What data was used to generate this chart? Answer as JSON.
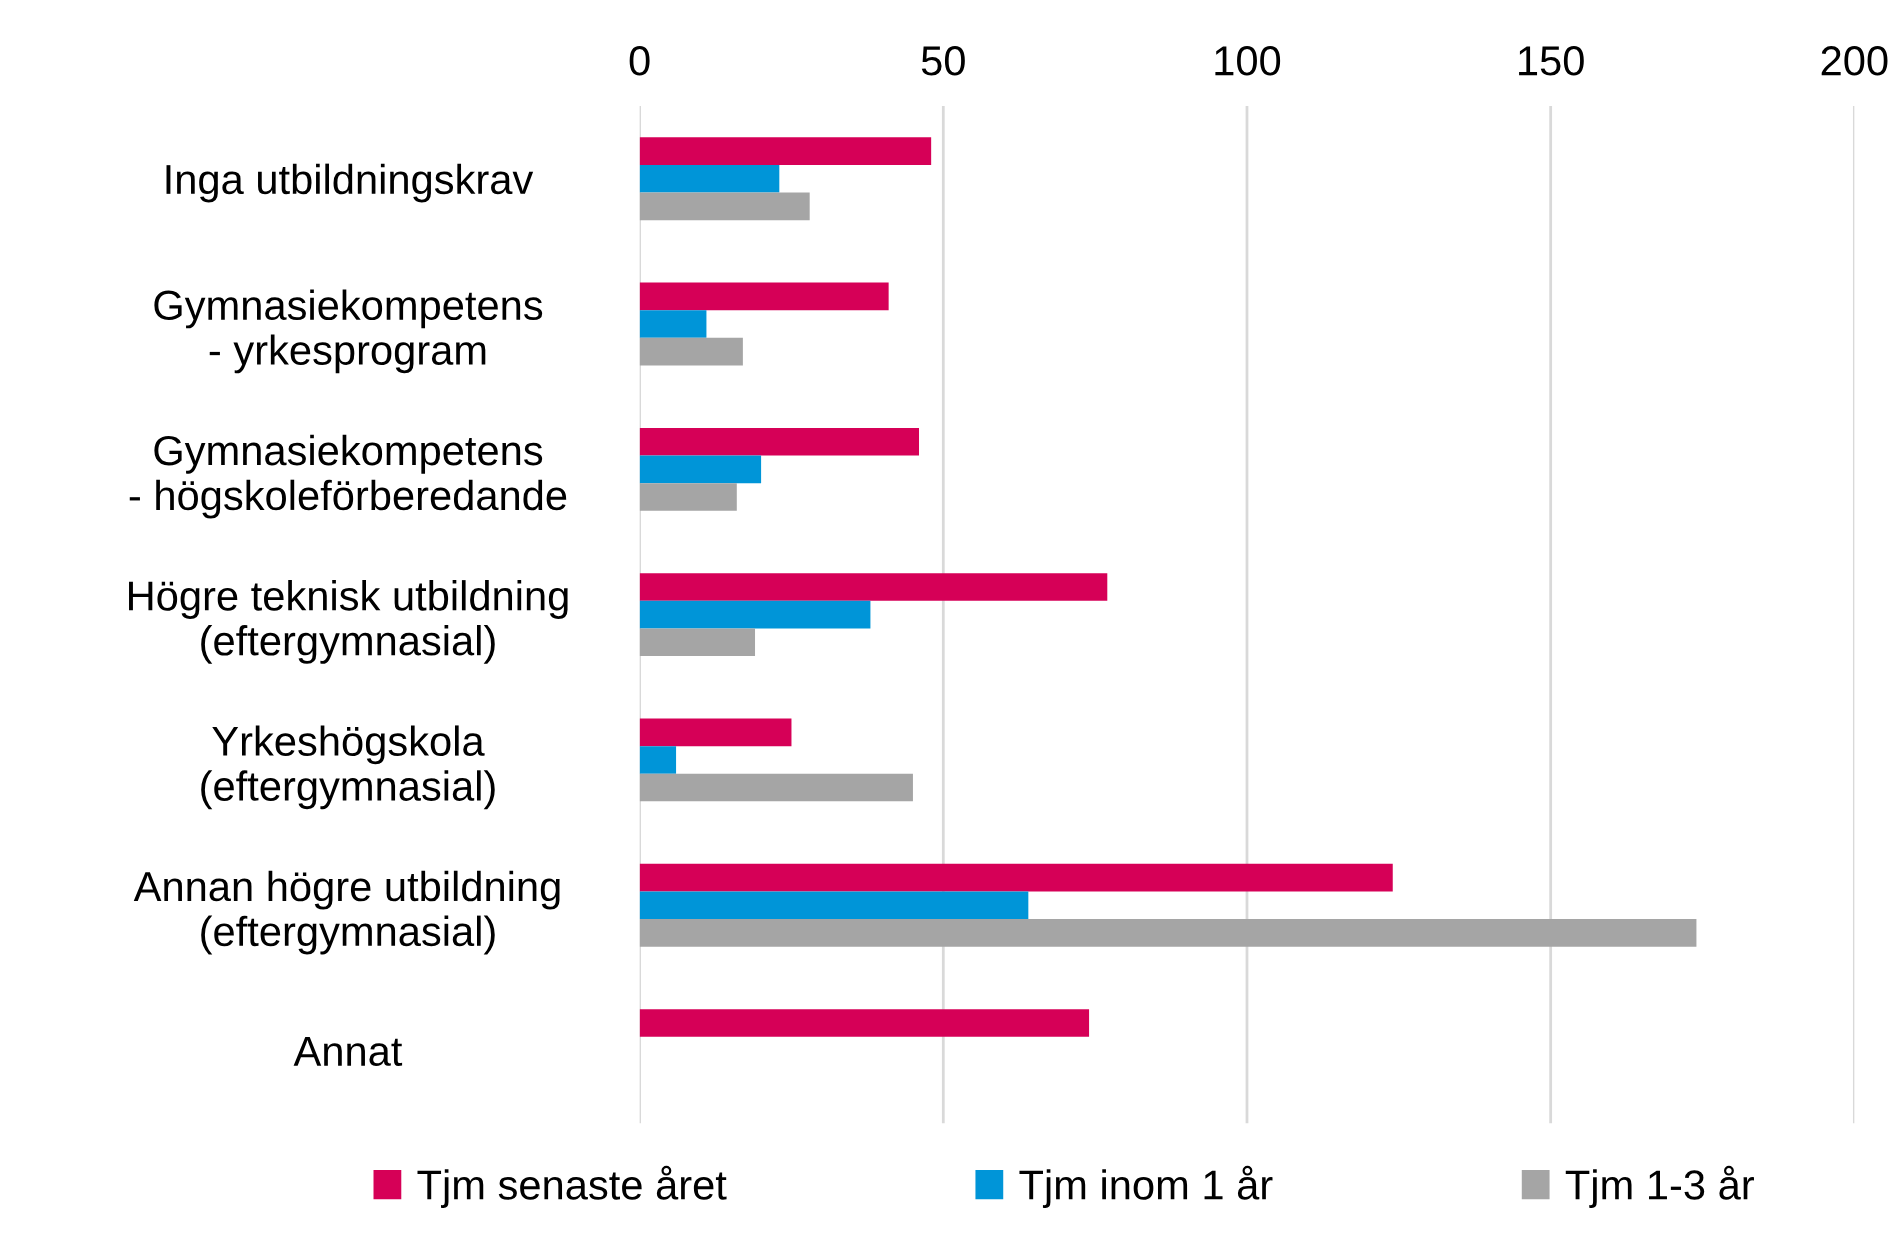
{
  "chart_data": {
    "type": "bar",
    "orientation": "horizontal",
    "categories": [
      "Inga utbildningskrav",
      "Gymnasiekompetens\n- yrkesprogram",
      "Gymnasiekompetens\n- högskoleförberedande",
      "Högre teknisk utbildning\n(eftergymnasial)",
      "Yrkeshögskola\n(eftergymnasial)",
      "Annan högre utbildning\n(eftergymnasial)",
      "Annat"
    ],
    "series": [
      {
        "name": "Tjm senaste året",
        "color": "#d60057",
        "values": [
          48,
          41,
          46,
          77,
          25,
          124,
          74
        ]
      },
      {
        "name": "Tjm inom 1 år",
        "color": "#0095d8",
        "values": [
          23,
          11,
          20,
          38,
          6,
          64,
          null
        ]
      },
      {
        "name": "Tjm 1-3 år",
        "color": "#a5a5a5",
        "values": [
          28,
          17,
          16,
          19,
          45,
          174,
          null
        ]
      }
    ],
    "xlim": [
      0,
      200
    ],
    "xticks": [
      0,
      50,
      100,
      150,
      200
    ],
    "grid": "x",
    "legend": "bottom"
  }
}
